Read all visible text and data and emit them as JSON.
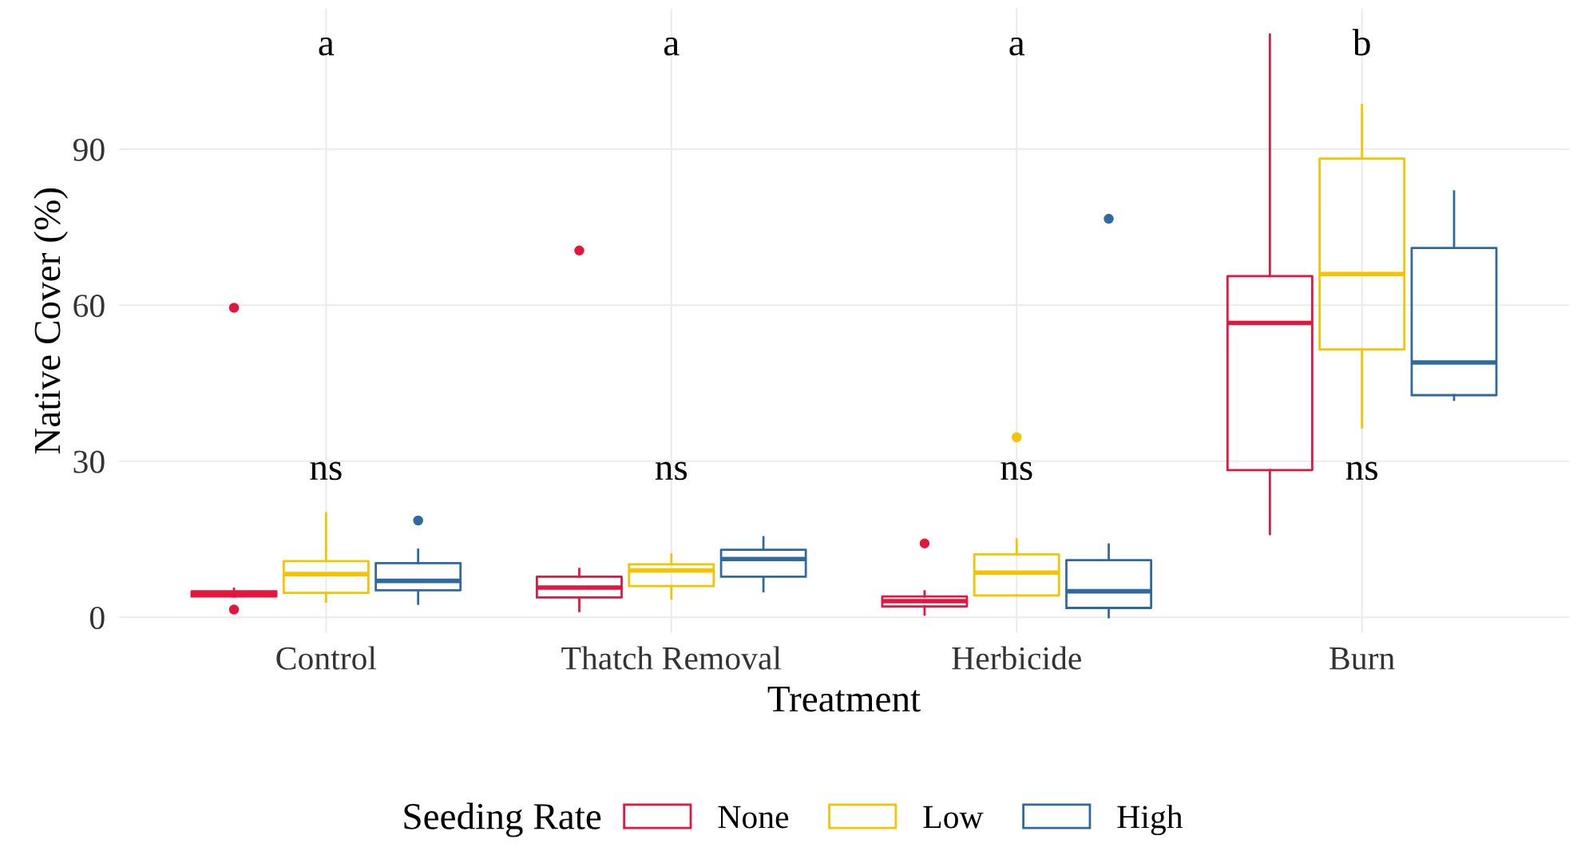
{
  "chart_data": {
    "type": "box",
    "xlabel": "Treatment",
    "ylabel": "Native Cover (%)",
    "legend_title": "Seeding Rate",
    "legend": "bottom",
    "grid": true,
    "categories": [
      "Control",
      "Thatch Removal",
      "Herbicide",
      "Burn"
    ],
    "ylim": [
      -3,
      117
    ],
    "yticks": [
      0,
      30,
      60,
      90
    ],
    "series": [
      {
        "name": "None",
        "color": "#e3173e",
        "boxes": [
          {
            "low": 4,
            "q1": 4,
            "median": 4.5,
            "q3": 5,
            "high": 5.5,
            "outliers": [
              1.5,
              59.5
            ]
          },
          {
            "low": 1.2,
            "q1": 3.8,
            "median": 5.7,
            "q3": 7.8,
            "high": 9.3,
            "outliers": [
              70.5
            ]
          },
          {
            "low": 0.5,
            "q1": 2.1,
            "median": 3.1,
            "q3": 4,
            "high": 5,
            "outliers": [
              14.2
            ]
          },
          {
            "low": 16,
            "q1": 28.3,
            "median": 56.6,
            "q3": 65.6,
            "high": 112
          }
        ]
      },
      {
        "name": "Low",
        "color": "#f5c400",
        "boxes": [
          {
            "low": 3,
            "q1": 4.7,
            "median": 8.3,
            "q3": 10.8,
            "high": 20
          },
          {
            "low": 3.6,
            "q1": 6,
            "median": 9,
            "q3": 10.2,
            "high": 12.1
          },
          {
            "low": 4.2,
            "q1": 4.2,
            "median": 8.6,
            "q3": 12.1,
            "high": 15,
            "outliers": [
              34.6
            ]
          },
          {
            "low": 36.5,
            "q1": 51.5,
            "median": 66,
            "q3": 88.2,
            "high": 98.5
          }
        ]
      },
      {
        "name": "High",
        "color": "#2e6aa0",
        "boxes": [
          {
            "low": 2.6,
            "q1": 5.2,
            "median": 7,
            "q3": 10.4,
            "high": 13,
            "outliers": [
              18.6
            ]
          },
          {
            "low": 5,
            "q1": 7.8,
            "median": 11.2,
            "q3": 13,
            "high": 15.4
          },
          {
            "low": 0,
            "q1": 1.8,
            "median": 5,
            "q3": 11,
            "high": 14,
            "outliers": [
              76.6
            ]
          },
          {
            "low": 41.8,
            "q1": 42.7,
            "median": 49,
            "q3": 71,
            "high": 81.9
          }
        ]
      }
    ],
    "annotations": [
      "a",
      "a",
      "a",
      "b",
      "ns",
      "ns",
      "ns",
      "ns"
    ]
  }
}
